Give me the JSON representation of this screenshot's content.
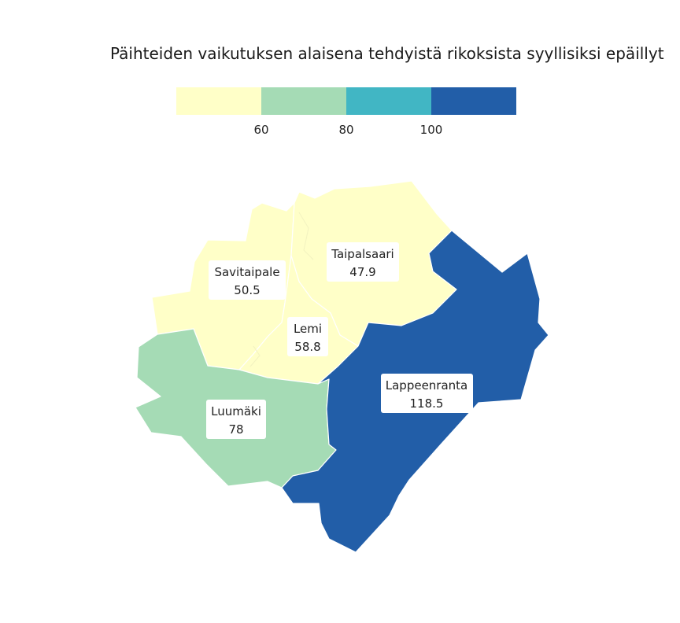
{
  "title": "Päihteiden vaikutuksen alaisena tehdyistä rikoksista syyllisiksi epäillyt",
  "legend": {
    "ticks": [
      "60",
      "80",
      "100"
    ],
    "colors": [
      "#ffffc8",
      "#a5dbb5",
      "#41b6c4",
      "#225ea8"
    ]
  },
  "regions": [
    {
      "id": "savitaipale",
      "name": "Savitaipale",
      "value": "50.5",
      "color": "#ffffc8"
    },
    {
      "id": "taipalsaari",
      "name": "Taipalsaari",
      "value": "47.9",
      "color": "#ffffc8"
    },
    {
      "id": "lemi",
      "name": "Lemi",
      "value": "58.8",
      "color": "#ffffc8"
    },
    {
      "id": "luumaki",
      "name": "Luumäki",
      "value": "78",
      "color": "#a5dbb5"
    },
    {
      "id": "lappeenranta",
      "name": "Lappeenranta",
      "value": "118.5",
      "color": "#225ea8"
    }
  ]
}
